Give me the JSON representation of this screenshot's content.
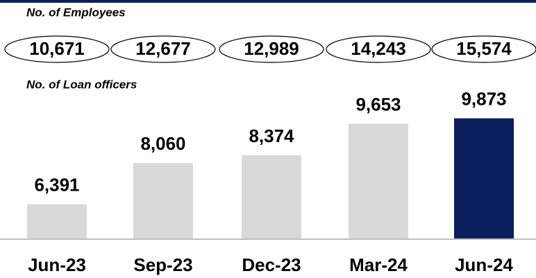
{
  "chart_data": {
    "type": "bar",
    "categories": [
      "Jun-23",
      "Sep-23",
      "Dec-23",
      "Mar-24",
      "Jun-24"
    ],
    "series": [
      {
        "name": "No. of Employees",
        "style": "ellipse",
        "values": [
          10671,
          12677,
          12989,
          14243,
          15574
        ],
        "value_labels": [
          "10,671",
          "12,677",
          "12,989",
          "14,243",
          "15,574"
        ]
      },
      {
        "name": "No. of Loan officers",
        "values": [
          6391,
          8060,
          8374,
          9653,
          9873
        ],
        "value_labels": [
          "6,391",
          "8,060",
          "8,374",
          "9,653",
          "9,873"
        ],
        "colors": [
          "#d9d9d9",
          "#d9d9d9",
          "#d9d9d9",
          "#d9d9d9",
          "#0a1f5c"
        ]
      }
    ],
    "ylim": [
      5000,
      12000
    ]
  }
}
